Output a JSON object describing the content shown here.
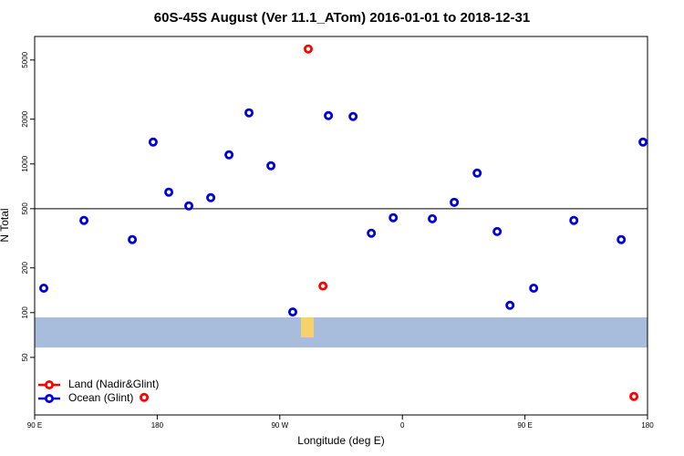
{
  "chart_data": {
    "type": "scatter",
    "title": "60S-45S August (Ver 11.1_ATom)   2016-01-01 to 2018-12-31",
    "xlabel": "Longitude (deg E)",
    "ylabel": "N Total",
    "xlim": [
      90,
      540
    ],
    "ylim": [
      20.5,
      7200
    ],
    "log_y": true,
    "xticks": [
      {
        "value": 90,
        "label": "90 E"
      },
      180,
      {
        "value": 270,
        "label": "90 W"
      },
      {
        "value": 360,
        "label": "0"
      },
      {
        "value": 450,
        "label": "90 E"
      },
      {
        "value": 540,
        "label": "180"
      }
    ],
    "yticks": [
      50,
      100,
      200,
      500,
      1000,
      2000,
      5000
    ],
    "reference_line": 500,
    "legend": "bottom-left",
    "series": [
      {
        "name": "Land (Nadir&Glint)",
        "color": "#ff0000",
        "x": [
          290.9,
          301.7,
          170.4,
          530
        ],
        "values": [
          5930,
          151,
          26.9,
          27.3
        ]
      },
      {
        "name": "Ocean (Glint)",
        "color": "#0000dd",
        "x": [
          96.7,
          126.2,
          161.7,
          177,
          188.5,
          203.2,
          219.3,
          232.7,
          247.4,
          263.5,
          279.5,
          305.7,
          323.8,
          337.2,
          353.3,
          382,
          398.1,
          414.9,
          429.6,
          439,
          456.4,
          485.9,
          520.7,
          536.7
        ],
        "values": [
          146,
          417,
          310,
          1403,
          646,
          522,
          593,
          1151,
          2207,
          972,
          101,
          2114,
          2085,
          342,
          435,
          428,
          552,
          868,
          351,
          112,
          146,
          417,
          310,
          1403
        ]
      }
    ]
  }
}
